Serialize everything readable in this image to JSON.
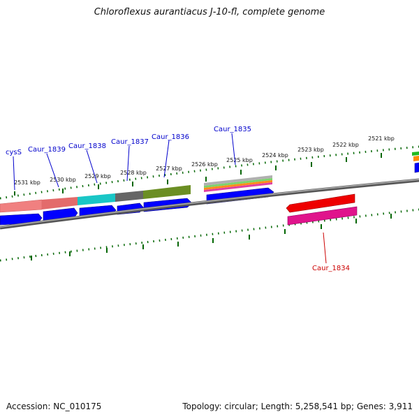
{
  "title": "Chloroflexus aurantiacus J-10-fl, complete genome",
  "footer": {
    "accession": "Accession: NC_010175",
    "topology": "Topology: circular; Length: 5,258,541 bp; Genes: 3,911"
  },
  "ticks": [
    "2531 kbp",
    "2530 kbp",
    "2529 kbp",
    "2528 kbp",
    "2527 kbp",
    "2526 kbp",
    "2525 kbp",
    "2524 kbp",
    "2523 kbp",
    "2522 kbp",
    "2521 kbp"
  ],
  "gene_labels": [
    "cysS",
    "Caur_1839",
    "Caur_1838",
    "Caur_1837",
    "Caur_1836",
    "Caur_1835",
    "Caur_1834"
  ],
  "colors": {
    "label_forward": "#0000cc",
    "label_reverse": "#cc0000",
    "tick_green": "#006600",
    "cds_blue": "#0000ff",
    "backbone": "#808080"
  }
}
